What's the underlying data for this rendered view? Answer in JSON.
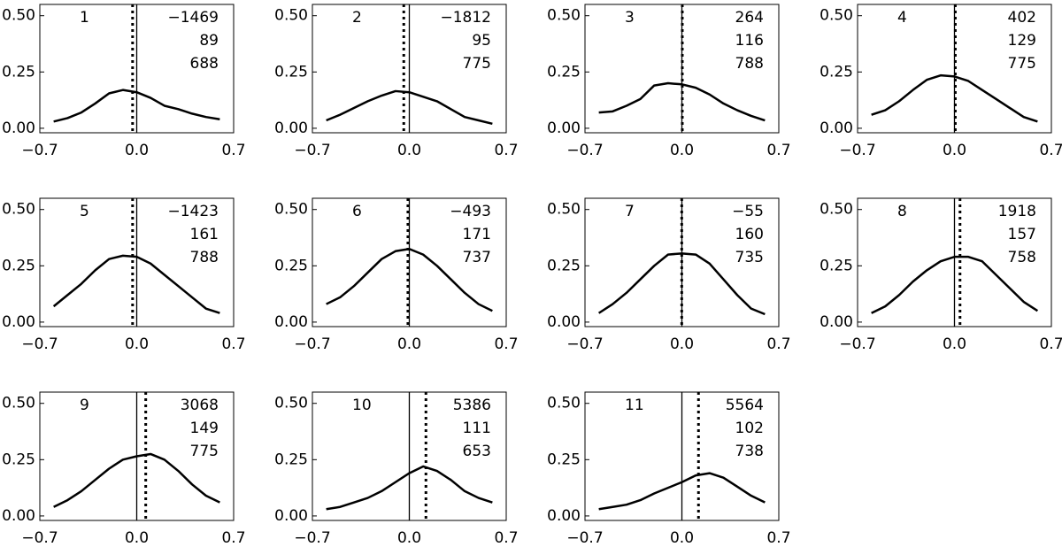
{
  "chart_data": [
    {
      "type": "line",
      "label": "1",
      "annotations": [
        "−1469",
        "89",
        "688"
      ],
      "dotted_line_x": -0.03,
      "x": [
        -0.6,
        -0.5,
        -0.4,
        -0.3,
        -0.2,
        -0.1,
        0,
        0.1,
        0.2,
        0.3,
        0.4,
        0.5,
        0.6
      ],
      "values": [
        0.03,
        0.045,
        0.07,
        0.11,
        0.155,
        0.17,
        0.16,
        0.135,
        0.1,
        0.085,
        0.065,
        0.05,
        0.04
      ],
      "xlim": [
        -0.7,
        0.7
      ],
      "ylim": [
        -0.02,
        0.55
      ],
      "xticks": [
        {
          "value": -0.7,
          "label": "−0.7"
        },
        {
          "value": 0,
          "label": "0.0"
        },
        {
          "value": 0.7,
          "label": "0.7"
        }
      ],
      "yticks": [
        {
          "value": 0,
          "label": "0.00"
        },
        {
          "value": 0.25,
          "label": "0.25"
        },
        {
          "value": 0.5,
          "label": "0.50"
        }
      ]
    },
    {
      "type": "line",
      "label": "2",
      "annotations": [
        "−1812",
        "95",
        "775"
      ],
      "dotted_line_x": -0.04,
      "x": [
        -0.6,
        -0.5,
        -0.4,
        -0.3,
        -0.2,
        -0.1,
        0,
        0.1,
        0.2,
        0.3,
        0.4,
        0.5,
        0.6
      ],
      "values": [
        0.035,
        0.06,
        0.09,
        0.12,
        0.145,
        0.165,
        0.16,
        0.14,
        0.12,
        0.085,
        0.05,
        0.035,
        0.02
      ],
      "xlim": [
        -0.7,
        0.7
      ],
      "ylim": [
        -0.02,
        0.55
      ],
      "xticks": [
        {
          "value": -0.7,
          "label": "−0.7"
        },
        {
          "value": 0,
          "label": "0.0"
        },
        {
          "value": 0.7,
          "label": "0.7"
        }
      ],
      "yticks": [
        {
          "value": 0,
          "label": "0.00"
        },
        {
          "value": 0.25,
          "label": "0.25"
        },
        {
          "value": 0.5,
          "label": "0.50"
        }
      ]
    },
    {
      "type": "line",
      "label": "3",
      "annotations": [
        "264",
        "116",
        "788"
      ],
      "dotted_line_x": 0.003,
      "x": [
        -0.6,
        -0.5,
        -0.4,
        -0.3,
        -0.2,
        -0.1,
        0,
        0.1,
        0.2,
        0.3,
        0.4,
        0.5,
        0.6
      ],
      "values": [
        0.07,
        0.075,
        0.1,
        0.13,
        0.19,
        0.2,
        0.195,
        0.18,
        0.15,
        0.11,
        0.08,
        0.055,
        0.035
      ],
      "xlim": [
        -0.7,
        0.7
      ],
      "ylim": [
        -0.02,
        0.55
      ],
      "xticks": [
        {
          "value": -0.7,
          "label": "−0.7"
        },
        {
          "value": 0,
          "label": "0.0"
        },
        {
          "value": 0.7,
          "label": "0.7"
        }
      ],
      "yticks": [
        {
          "value": 0,
          "label": "0.00"
        },
        {
          "value": 0.25,
          "label": "0.25"
        },
        {
          "value": 0.5,
          "label": "0.50"
        }
      ]
    },
    {
      "type": "line",
      "label": "4",
      "annotations": [
        "402",
        "129",
        "775"
      ],
      "dotted_line_x": 0.006,
      "x": [
        -0.6,
        -0.5,
        -0.4,
        -0.3,
        -0.2,
        -0.1,
        0,
        0.1,
        0.2,
        0.3,
        0.4,
        0.5,
        0.6
      ],
      "values": [
        0.06,
        0.08,
        0.12,
        0.17,
        0.215,
        0.235,
        0.23,
        0.21,
        0.17,
        0.13,
        0.09,
        0.05,
        0.03
      ],
      "xlim": [
        -0.7,
        0.7
      ],
      "ylim": [
        -0.02,
        0.55
      ],
      "xticks": [
        {
          "value": -0.7,
          "label": "−0.7"
        },
        {
          "value": 0,
          "label": "0.0"
        },
        {
          "value": 0.7,
          "label": "0.7"
        }
      ],
      "yticks": [
        {
          "value": 0,
          "label": "0.00"
        },
        {
          "value": 0.25,
          "label": "0.25"
        },
        {
          "value": 0.5,
          "label": "0.50"
        }
      ]
    },
    {
      "type": "line",
      "label": "5",
      "annotations": [
        "−1423",
        "161",
        "788"
      ],
      "dotted_line_x": -0.03,
      "x": [
        -0.6,
        -0.5,
        -0.4,
        -0.3,
        -0.2,
        -0.1,
        0,
        0.1,
        0.2,
        0.3,
        0.4,
        0.5,
        0.6
      ],
      "values": [
        0.07,
        0.12,
        0.17,
        0.23,
        0.28,
        0.295,
        0.29,
        0.26,
        0.21,
        0.16,
        0.11,
        0.06,
        0.04
      ],
      "xlim": [
        -0.7,
        0.7
      ],
      "ylim": [
        -0.02,
        0.55
      ],
      "xticks": [
        {
          "value": -0.7,
          "label": "−0.7"
        },
        {
          "value": 0,
          "label": "0.0"
        },
        {
          "value": 0.7,
          "label": "0.7"
        }
      ],
      "yticks": [
        {
          "value": 0,
          "label": "0.00"
        },
        {
          "value": 0.25,
          "label": "0.25"
        },
        {
          "value": 0.5,
          "label": "0.50"
        }
      ]
    },
    {
      "type": "line",
      "label": "6",
      "annotations": [
        "−493",
        "171",
        "737"
      ],
      "dotted_line_x": -0.01,
      "x": [
        -0.6,
        -0.5,
        -0.4,
        -0.3,
        -0.2,
        -0.1,
        0,
        0.1,
        0.2,
        0.3,
        0.4,
        0.5,
        0.6
      ],
      "values": [
        0.08,
        0.11,
        0.16,
        0.22,
        0.28,
        0.315,
        0.325,
        0.3,
        0.25,
        0.19,
        0.13,
        0.08,
        0.05
      ],
      "xlim": [
        -0.7,
        0.7
      ],
      "ylim": [
        -0.02,
        0.55
      ],
      "xticks": [
        {
          "value": -0.7,
          "label": "−0.7"
        },
        {
          "value": 0,
          "label": "0.0"
        },
        {
          "value": 0.7,
          "label": "0.7"
        }
      ],
      "yticks": [
        {
          "value": 0,
          "label": "0.00"
        },
        {
          "value": 0.25,
          "label": "0.25"
        },
        {
          "value": 0.5,
          "label": "0.50"
        }
      ]
    },
    {
      "type": "line",
      "label": "7",
      "annotations": [
        "−55",
        "160",
        "735"
      ],
      "dotted_line_x": -0.001,
      "x": [
        -0.6,
        -0.5,
        -0.4,
        -0.3,
        -0.2,
        -0.1,
        0,
        0.1,
        0.2,
        0.3,
        0.4,
        0.5,
        0.6
      ],
      "values": [
        0.04,
        0.08,
        0.13,
        0.19,
        0.25,
        0.3,
        0.305,
        0.3,
        0.26,
        0.19,
        0.12,
        0.06,
        0.035
      ],
      "xlim": [
        -0.7,
        0.7
      ],
      "ylim": [
        -0.02,
        0.55
      ],
      "xticks": [
        {
          "value": -0.7,
          "label": "−0.7"
        },
        {
          "value": 0,
          "label": "0.0"
        },
        {
          "value": 0.7,
          "label": "0.7"
        }
      ],
      "yticks": [
        {
          "value": 0,
          "label": "0.00"
        },
        {
          "value": 0.25,
          "label": "0.25"
        },
        {
          "value": 0.5,
          "label": "0.50"
        }
      ]
    },
    {
      "type": "line",
      "label": "8",
      "annotations": [
        "1918",
        "157",
        "758"
      ],
      "dotted_line_x": 0.04,
      "x": [
        -0.6,
        -0.5,
        -0.4,
        -0.3,
        -0.2,
        -0.1,
        0,
        0.1,
        0.2,
        0.3,
        0.4,
        0.5,
        0.6
      ],
      "values": [
        0.04,
        0.07,
        0.12,
        0.18,
        0.23,
        0.27,
        0.29,
        0.29,
        0.27,
        0.21,
        0.15,
        0.09,
        0.05
      ],
      "xlim": [
        -0.7,
        0.7
      ],
      "ylim": [
        -0.02,
        0.55
      ],
      "xticks": [
        {
          "value": -0.7,
          "label": "−0.7"
        },
        {
          "value": 0,
          "label": "0.0"
        },
        {
          "value": 0.7,
          "label": "0.7"
        }
      ],
      "yticks": [
        {
          "value": 0,
          "label": "0.00"
        },
        {
          "value": 0.25,
          "label": "0.25"
        },
        {
          "value": 0.5,
          "label": "0.50"
        }
      ]
    },
    {
      "type": "line",
      "label": "9",
      "annotations": [
        "3068",
        "149",
        "775"
      ],
      "dotted_line_x": 0.065,
      "x": [
        -0.6,
        -0.5,
        -0.4,
        -0.3,
        -0.2,
        -0.1,
        0,
        0.1,
        0.2,
        0.3,
        0.4,
        0.5,
        0.6
      ],
      "values": [
        0.04,
        0.07,
        0.11,
        0.16,
        0.21,
        0.25,
        0.265,
        0.275,
        0.25,
        0.2,
        0.14,
        0.09,
        0.06
      ],
      "xlim": [
        -0.7,
        0.7
      ],
      "ylim": [
        -0.02,
        0.55
      ],
      "xticks": [
        {
          "value": -0.7,
          "label": "−0.7"
        },
        {
          "value": 0,
          "label": "0.0"
        },
        {
          "value": 0.7,
          "label": "0.7"
        }
      ],
      "yticks": [
        {
          "value": 0,
          "label": "0.00"
        },
        {
          "value": 0.25,
          "label": "0.25"
        },
        {
          "value": 0.5,
          "label": "0.50"
        }
      ]
    },
    {
      "type": "line",
      "label": "10",
      "annotations": [
        "5386",
        "111",
        "653"
      ],
      "dotted_line_x": 0.12,
      "x": [
        -0.6,
        -0.5,
        -0.4,
        -0.3,
        -0.2,
        -0.1,
        0,
        0.1,
        0.2,
        0.3,
        0.4,
        0.5,
        0.6
      ],
      "values": [
        0.03,
        0.04,
        0.06,
        0.08,
        0.11,
        0.15,
        0.19,
        0.22,
        0.2,
        0.16,
        0.11,
        0.08,
        0.06
      ],
      "xlim": [
        -0.7,
        0.7
      ],
      "ylim": [
        -0.02,
        0.55
      ],
      "xticks": [
        {
          "value": -0.7,
          "label": "−0.7"
        },
        {
          "value": 0,
          "label": "0.0"
        },
        {
          "value": 0.7,
          "label": "0.7"
        }
      ],
      "yticks": [
        {
          "value": 0,
          "label": "0.00"
        },
        {
          "value": 0.25,
          "label": "0.25"
        },
        {
          "value": 0.5,
          "label": "0.50"
        }
      ]
    },
    {
      "type": "line",
      "label": "11",
      "annotations": [
        "5564",
        "102",
        "738"
      ],
      "dotted_line_x": 0.12,
      "x": [
        -0.6,
        -0.5,
        -0.4,
        -0.3,
        -0.2,
        -0.1,
        0,
        0.1,
        0.2,
        0.3,
        0.4,
        0.5,
        0.6
      ],
      "values": [
        0.03,
        0.04,
        0.05,
        0.07,
        0.1,
        0.125,
        0.15,
        0.18,
        0.19,
        0.17,
        0.13,
        0.09,
        0.06
      ],
      "xlim": [
        -0.7,
        0.7
      ],
      "ylim": [
        -0.02,
        0.55
      ],
      "xticks": [
        {
          "value": -0.7,
          "label": "−0.7"
        },
        {
          "value": 0,
          "label": "0.0"
        },
        {
          "value": 0.7,
          "label": "0.7"
        }
      ],
      "yticks": [
        {
          "value": 0,
          "label": "0.00"
        },
        {
          "value": 0.25,
          "label": "0.25"
        },
        {
          "value": 0.5,
          "label": "0.50"
        }
      ]
    }
  ]
}
